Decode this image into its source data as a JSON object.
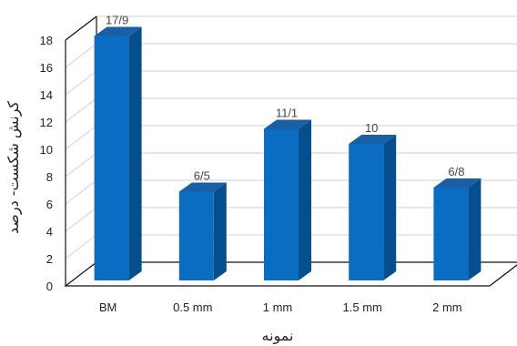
{
  "chart_data": {
    "type": "bar",
    "categories": [
      "BM",
      "0.5 mm",
      "1 mm",
      "1.5 mm",
      "2 mm"
    ],
    "values": [
      17.9,
      6.5,
      11.1,
      10,
      6.8
    ],
    "data_labels": [
      "17/9",
      "6/5",
      "11/1",
      "10",
      "6/8"
    ],
    "xlabel": "نمونه",
    "ylabel": "کرنش شکست- درصد",
    "ylim": [
      0,
      18
    ],
    "yticks": [
      0,
      2,
      4,
      6,
      8,
      10,
      12,
      14,
      16,
      18
    ],
    "grid": true,
    "style": "3d-column",
    "colors": {
      "bar_front": "#0a6dc2",
      "bar_side": "#064f8e",
      "bar_top": "#1a5fa3",
      "grid": "#cfcfcf",
      "axis": "#111111"
    }
  }
}
